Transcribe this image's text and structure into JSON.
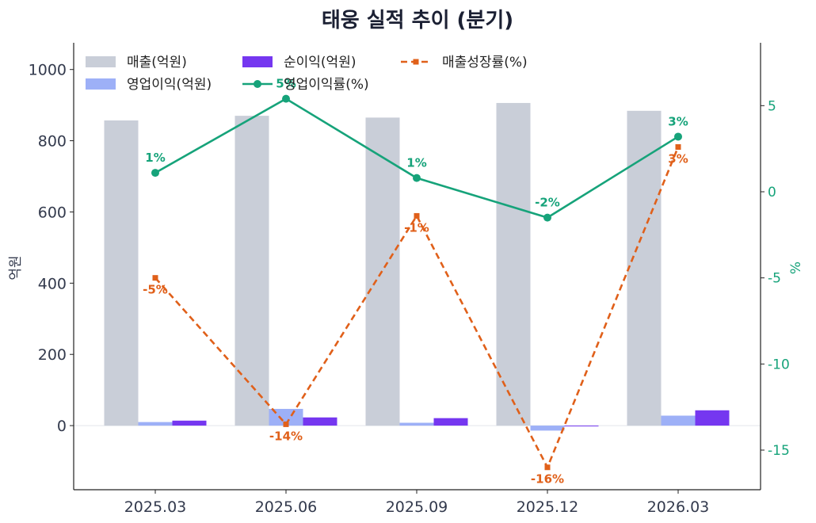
{
  "chart_data": {
    "type": "bar",
    "title": "태웅 실적 추이 (분기)",
    "categories": [
      "2025.03",
      "2025.06",
      "2025.09",
      "2025.12",
      "2026.03"
    ],
    "ylabel": "억원",
    "y2label": "%",
    "ylim": [
      -180,
      1075
    ],
    "y2lim": [
      -17.3,
      8.65
    ],
    "yticks": [
      0,
      200,
      400,
      600,
      800,
      1000
    ],
    "y2ticks": [
      -15,
      -10,
      -5,
      0,
      5
    ],
    "y2tick_labels": [
      "-15",
      "-10",
      "-5",
      "0",
      "5"
    ],
    "legend_placement": "top-left",
    "grid": false,
    "bar_series": [
      {
        "name": "매출(억원)",
        "color": "#c9ced8",
        "values": [
          857,
          870,
          865,
          906,
          884
        ]
      },
      {
        "name": "영업이익(억원)",
        "color": "#9db0f7",
        "values": [
          10,
          47,
          8,
          -14,
          28
        ]
      },
      {
        "name": "순이익(억원)",
        "color": "#7537f0",
        "values": [
          14,
          23,
          21,
          -1,
          43
        ]
      }
    ],
    "line_series": [
      {
        "name": "영업이익률(%)",
        "color": "#16a37a",
        "style": "solid",
        "marker": "circle",
        "values": [
          1.1,
          5.4,
          0.8,
          -1.5,
          3.2
        ],
        "labels": [
          "1%",
          "5%",
          "1%",
          "-2%",
          "3%"
        ]
      },
      {
        "name": "매출성장률(%)",
        "color": "#e0601a",
        "style": "dashed",
        "marker": "square",
        "values": [
          -5.0,
          -13.5,
          -1.4,
          -16.0,
          2.6
        ],
        "labels": [
          "-5%",
          "-14%",
          "-1%",
          "-16%",
          "3%"
        ]
      }
    ]
  }
}
